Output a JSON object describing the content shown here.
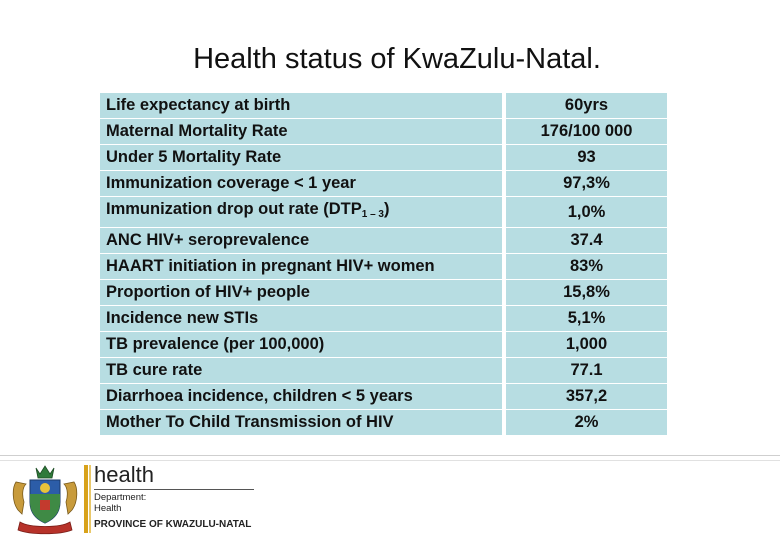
{
  "title": "Health status of KwaZulu-Natal.",
  "rows": [
    {
      "label": "Life expectancy at birth",
      "value": "60yrs"
    },
    {
      "label": "Maternal Mortality Rate",
      "value": "176/100 000"
    },
    {
      "label": "Under 5 Mortality Rate",
      "value": "93"
    },
    {
      "label": "Immunization coverage < 1 year",
      "value": "97,3%"
    },
    {
      "label_pre": "Immunization drop out rate (DTP",
      "label_sub": "1 – 3",
      "label_post": ")",
      "value": "1,0%"
    },
    {
      "label": "ANC HIV+ seroprevalence",
      "value": "37.4"
    },
    {
      "label": "HAART initiation in pregnant HIV+ women",
      "value": "83%"
    },
    {
      "label": "Proportion of HIV+ people",
      "value": "15,8%"
    },
    {
      "label": "Incidence new STIs",
      "value": "5,1%"
    },
    {
      "label": "TB prevalence (per 100,000)",
      "value": "1,000"
    },
    {
      "label": "TB cure rate",
      "value": "77.1"
    },
    {
      "label": "Diarrhoea incidence, children < 5 years",
      "value": "357,2"
    },
    {
      "label": "Mother To Child Transmission of HIV",
      "value": "2%"
    }
  ],
  "footer": {
    "logo_word": "health",
    "dept_line1": "Department:",
    "dept_line2": "Health",
    "province": "PROVINCE OF KWAZULU-NATAL"
  },
  "colors": {
    "table_fill": "#b7dde2",
    "accent_bar": "#d8a21a"
  },
  "icons": {
    "crest": "coat-of-arms-icon"
  }
}
